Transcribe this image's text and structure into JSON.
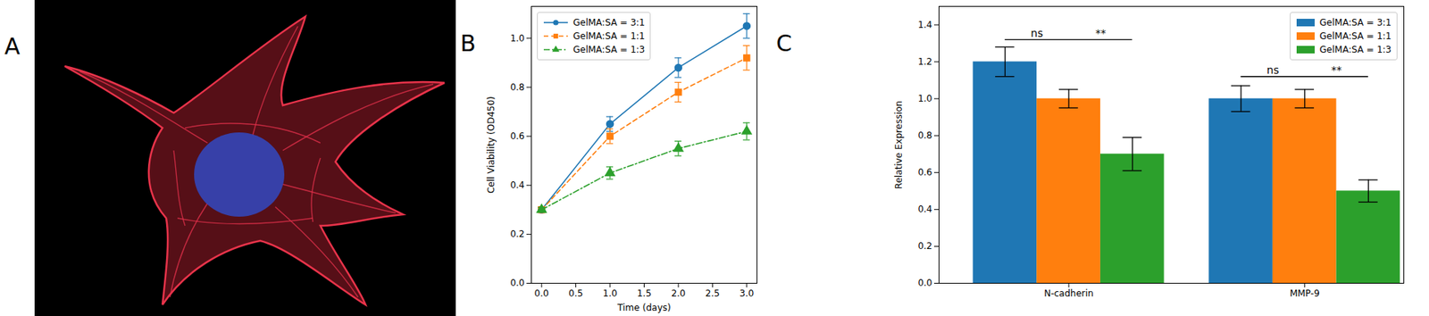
{
  "chart_data": [
    {
      "type": "image",
      "panel": "A"
    },
    {
      "type": "line",
      "panel": "B",
      "xlabel": "Time (days)",
      "ylabel": "Cell Viability (OD450)",
      "x": [
        0,
        1,
        2,
        3
      ],
      "series": [
        {
          "name": "GelMA:SA = 3:1",
          "color": "#1f77b4",
          "marker": "circle",
          "line_style": "solid",
          "values": [
            0.3,
            0.65,
            0.88,
            1.05
          ],
          "errors": [
            0.01,
            0.03,
            0.04,
            0.05
          ]
        },
        {
          "name": "GelMA:SA = 1:1",
          "color": "#ff7f0e",
          "marker": "square",
          "line_style": "dashed",
          "values": [
            0.3,
            0.6,
            0.78,
            0.92
          ],
          "errors": [
            0.01,
            0.03,
            0.04,
            0.05
          ]
        },
        {
          "name": "GelMA:SA = 1:3",
          "color": "#2ca02c",
          "marker": "triangle",
          "line_style": "dashdot",
          "values": [
            0.3,
            0.45,
            0.55,
            0.62
          ],
          "errors": [
            0.01,
            0.025,
            0.03,
            0.035
          ]
        }
      ],
      "xlim": [
        -0.15,
        3.15
      ],
      "xticks": [
        {
          "value": 0,
          "label": "0.0"
        },
        0.5,
        {
          "value": 1,
          "label": "1.0"
        },
        1.5,
        {
          "value": 2,
          "label": "2.0"
        },
        2.5,
        {
          "value": 3,
          "label": "3.0"
        }
      ],
      "ylim": [
        0,
        1.13
      ],
      "yticks": [
        {
          "value": 0,
          "label": "0.0"
        },
        0.2,
        0.4,
        0.6,
        0.8,
        {
          "value": 1,
          "label": "1.0"
        }
      ],
      "legend": "upper left"
    },
    {
      "type": "bar",
      "panel": "C",
      "ylabel": "Relative Expression",
      "categories": [
        "N-cadherin",
        "MMP-9"
      ],
      "series": [
        {
          "name": "GelMA:SA = 3:1",
          "color": "#1f77b4",
          "values": [
            1.2,
            1.0
          ],
          "errors": [
            0.08,
            0.07
          ]
        },
        {
          "name": "GelMA:SA = 1:1",
          "color": "#ff7f0e",
          "values": [
            1.0,
            1.0
          ],
          "errors": [
            0.05,
            0.05
          ]
        },
        {
          "name": "GelMA:SA = 1:3",
          "color": "#2ca02c",
          "values": [
            0.7,
            0.5
          ],
          "errors": [
            0.09,
            0.06
          ]
        }
      ],
      "ylim": [
        0,
        1.5
      ],
      "yticks": [
        {
          "value": 0,
          "label": "0.0"
        },
        0.2,
        0.4,
        0.6,
        0.8,
        {
          "value": 1,
          "label": "1.0"
        },
        1.2,
        1.4
      ],
      "annotations": [
        {
          "category": "N-cadherin",
          "y": 1.32,
          "labels": [
            "ns",
            "**"
          ]
        },
        {
          "category": "MMP-9",
          "y": 1.12,
          "labels": [
            "ns",
            "**"
          ]
        }
      ],
      "legend": "upper right"
    }
  ]
}
